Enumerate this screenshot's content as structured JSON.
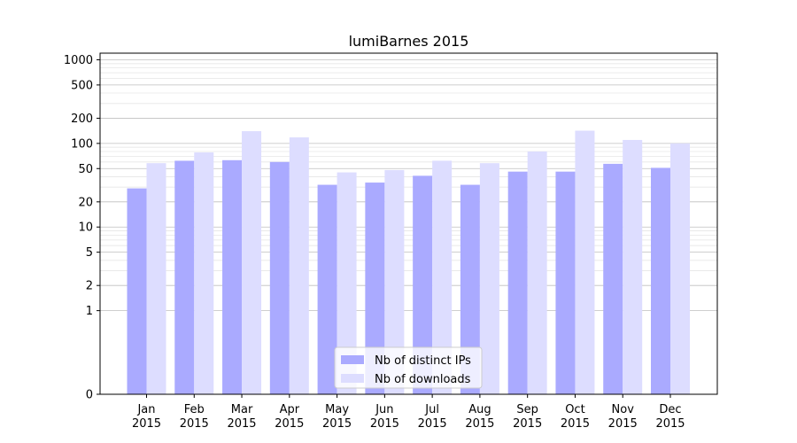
{
  "chart_data": {
    "type": "bar",
    "title": "lumiBarnes 2015",
    "xlabel": "",
    "ylabel": "",
    "yscale": "symlog",
    "ylim": [
      0,
      1200
    ],
    "grid": true,
    "legend_position": "bottom-center",
    "y_ticks": [
      0,
      1,
      2,
      5,
      10,
      20,
      50,
      100,
      200,
      500,
      1000
    ],
    "categories": [
      [
        "Jan",
        "2015"
      ],
      [
        "Feb",
        "2015"
      ],
      [
        "Mar",
        "2015"
      ],
      [
        "Apr",
        "2015"
      ],
      [
        "May",
        "2015"
      ],
      [
        "Jun",
        "2015"
      ],
      [
        "Jul",
        "2015"
      ],
      [
        "Aug",
        "2015"
      ],
      [
        "Sep",
        "2015"
      ],
      [
        "Oct",
        "2015"
      ],
      [
        "Nov",
        "2015"
      ],
      [
        "Dec",
        "2015"
      ]
    ],
    "series": [
      {
        "name": "Nb of distinct IPs",
        "color": "#aaaaff",
        "values": [
          29,
          62,
          63,
          60,
          32,
          34,
          41,
          32,
          46,
          46,
          57,
          51
        ]
      },
      {
        "name": "Nb of downloads",
        "color": "#ddddff",
        "values": [
          58,
          78,
          140,
          118,
          45,
          48,
          62,
          58,
          80,
          142,
          110,
          100
        ]
      }
    ]
  }
}
